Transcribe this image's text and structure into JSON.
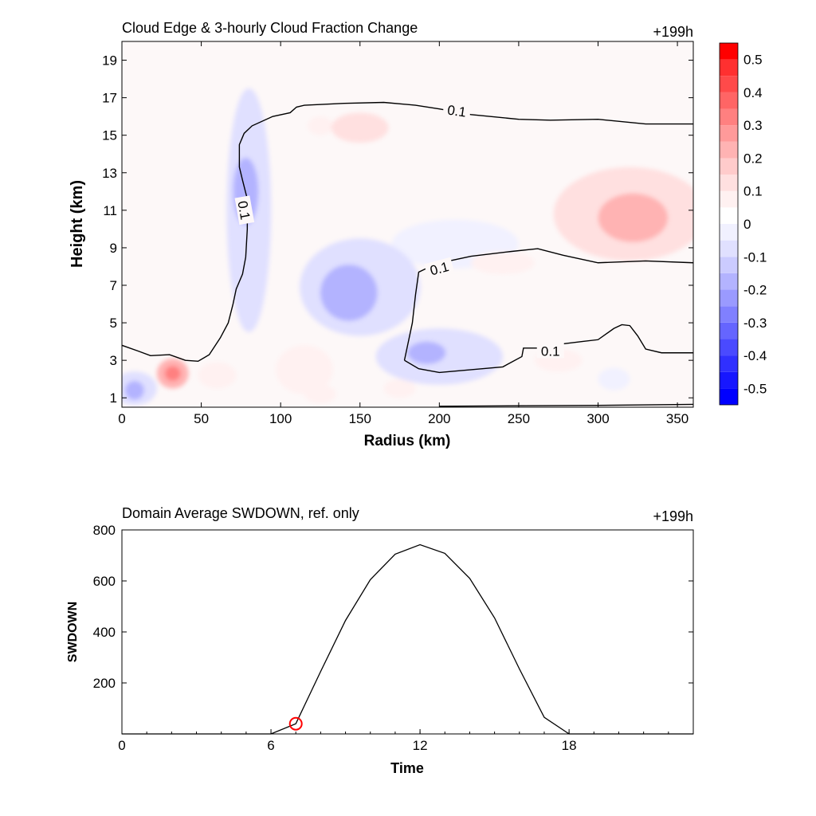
{
  "chart_data": [
    {
      "type": "heatmap",
      "title": "Cloud Edge & 3-hourly Cloud Fraction Change",
      "time_label": "+199h",
      "xlabel": "Radius (km)",
      "ylabel": "Height (km)",
      "xlim": [
        0,
        360
      ],
      "ylim": [
        0.5,
        20
      ],
      "xticks": [
        0,
        50,
        100,
        150,
        200,
        250,
        300,
        350
      ],
      "yticks": [
        1,
        3,
        5,
        7,
        9,
        11,
        13,
        15,
        17,
        19
      ],
      "colorbar": {
        "levels": [
          -0.55,
          -0.5,
          -0.45,
          -0.4,
          -0.35,
          -0.3,
          -0.25,
          -0.2,
          -0.15,
          -0.1,
          -0.05,
          0,
          0.05,
          0.1,
          0.15,
          0.2,
          0.25,
          0.3,
          0.35,
          0.4,
          0.45,
          0.5,
          0.55
        ],
        "colors": [
          "#0000ff",
          "#1717ff",
          "#3030ff",
          "#4a4aff",
          "#6565ff",
          "#8080ff",
          "#9a9aff",
          "#b3b3ff",
          "#cbcbff",
          "#e0e0ff",
          "#f1f1ff",
          "#ffffff",
          "#fff1f1",
          "#ffe0e0",
          "#ffcbcb",
          "#ffb3b3",
          "#ff9a9a",
          "#ff8080",
          "#ff6565",
          "#ff4a4a",
          "#ff3030",
          "#ff0000"
        ],
        "tick_labels": [
          "-0.5",
          "-0.4",
          "-0.3",
          "-0.2",
          "-0.1",
          "0",
          "0.1",
          "0.2",
          "0.3",
          "0.4",
          "0.5"
        ],
        "tick_values": [
          -0.5,
          -0.4,
          -0.3,
          -0.2,
          -0.1,
          0,
          0.1,
          0.2,
          0.3,
          0.4,
          0.5
        ]
      },
      "blobs": [
        {
          "x": 150,
          "y": 6.9,
          "rx": 38,
          "ry": 2.6,
          "v": -0.1
        },
        {
          "x": 143,
          "y": 6.6,
          "rx": 18,
          "ry": 1.5,
          "v": -0.2
        },
        {
          "x": 200,
          "y": 3.2,
          "rx": 40,
          "ry": 1.5,
          "v": -0.1
        },
        {
          "x": 192,
          "y": 3.4,
          "rx": 12,
          "ry": 0.6,
          "v": -0.2
        },
        {
          "x": 80,
          "y": 11,
          "rx": 14,
          "ry": 6.5,
          "v": -0.1
        },
        {
          "x": 78,
          "y": 12,
          "rx": 8,
          "ry": 1.8,
          "v": -0.2
        },
        {
          "x": 210,
          "y": 9.2,
          "rx": 40,
          "ry": 1.3,
          "v": -0.05
        },
        {
          "x": 8,
          "y": 1.5,
          "rx": 14,
          "ry": 0.9,
          "v": -0.1
        },
        {
          "x": 8,
          "y": 1.4,
          "rx": 6,
          "ry": 0.5,
          "v": -0.2
        },
        {
          "x": 310,
          "y": 2.0,
          "rx": 10,
          "ry": 0.6,
          "v": -0.05
        },
        {
          "x": 178,
          "y": 3.3,
          "rx": 4,
          "ry": 0.3,
          "v": -0.1
        },
        {
          "x": 320,
          "y": 10.8,
          "rx": 48,
          "ry": 2.5,
          "v": 0.1
        },
        {
          "x": 322,
          "y": 10.6,
          "rx": 22,
          "ry": 1.3,
          "v": 0.2
        },
        {
          "x": 150,
          "y": 15.4,
          "rx": 18,
          "ry": 0.8,
          "v": 0.1
        },
        {
          "x": 125,
          "y": 15.5,
          "rx": 8,
          "ry": 0.5,
          "v": 0.05
        },
        {
          "x": 32,
          "y": 2.3,
          "rx": 10,
          "ry": 0.8,
          "v": 0.2
        },
        {
          "x": 32,
          "y": 2.3,
          "rx": 5,
          "ry": 0.4,
          "v": 0.3
        },
        {
          "x": 115,
          "y": 2.5,
          "rx": 18,
          "ry": 1.3,
          "v": 0.05
        },
        {
          "x": 60,
          "y": 2.2,
          "rx": 12,
          "ry": 0.7,
          "v": 0.05
        },
        {
          "x": 125,
          "y": 1.2,
          "rx": 10,
          "ry": 0.5,
          "v": 0.05
        },
        {
          "x": 175,
          "y": 1.5,
          "rx": 10,
          "ry": 0.5,
          "v": 0.05
        },
        {
          "x": 240,
          "y": 8.2,
          "rx": 20,
          "ry": 0.6,
          "v": 0.05
        },
        {
          "x": 275,
          "y": 3.0,
          "rx": 15,
          "ry": 0.6,
          "v": 0.05
        }
      ],
      "contours": [
        {
          "label": "0.1",
          "points": [
            [
              0,
              3.8
            ],
            [
              10,
              3.5
            ],
            [
              18,
              3.25
            ],
            [
              30,
              3.3
            ],
            [
              40,
              3.0
            ],
            [
              48,
              2.95
            ],
            [
              55,
              3.3
            ],
            [
              62,
              4.2
            ],
            [
              67,
              5.0
            ],
            [
              70,
              6.0
            ],
            [
              72,
              6.8
            ],
            [
              76,
              7.6
            ],
            [
              78,
              8.5
            ],
            [
              79,
              10.0
            ],
            [
              79,
              11.6
            ],
            [
              76,
              12.6
            ],
            [
              74,
              13.3
            ],
            [
              74,
              14.5
            ],
            [
              77,
              15.1
            ],
            [
              82,
              15.5
            ],
            [
              95,
              16.0
            ],
            [
              106,
              16.2
            ],
            [
              110,
              16.5
            ],
            [
              115,
              16.6
            ],
            [
              140,
              16.7
            ],
            [
              165,
              16.75
            ],
            [
              185,
              16.6
            ],
            [
              200,
              16.4
            ],
            [
              220,
              16.1
            ],
            [
              250,
              15.85
            ],
            [
              270,
              15.8
            ],
            [
              300,
              15.85
            ],
            [
              330,
              15.6
            ],
            [
              360,
              15.6
            ]
          ]
        },
        {
          "label": "0.1",
          "points": [
            [
              178,
              3.0
            ],
            [
              183,
              5.0
            ],
            [
              185,
              6.5
            ],
            [
              187,
              7.7
            ],
            [
              198,
              8.15
            ],
            [
              220,
              8.55
            ],
            [
              245,
              8.8
            ],
            [
              262,
              8.95
            ],
            [
              278,
              8.6
            ],
            [
              300,
              8.2
            ],
            [
              330,
              8.3
            ],
            [
              360,
              8.2
            ]
          ]
        },
        {
          "label": "0.1",
          "points": [
            [
              178,
              3.0
            ],
            [
              187,
              2.55
            ],
            [
              200,
              2.35
            ],
            [
              220,
              2.5
            ],
            [
              240,
              2.65
            ],
            [
              252,
              3.2
            ],
            [
              253,
              3.65
            ],
            [
              262,
              3.65
            ],
            [
              275,
              3.85
            ],
            [
              290,
              4.0
            ],
            [
              300,
              4.1
            ],
            [
              310,
              4.7
            ],
            [
              315,
              4.9
            ],
            [
              320,
              4.85
            ],
            [
              325,
              4.3
            ],
            [
              330,
              3.6
            ],
            [
              340,
              3.4
            ],
            [
              360,
              3.4
            ]
          ]
        },
        {
          "label": "",
          "points": [
            [
              200,
              0.55
            ],
            [
              300,
              0.6
            ],
            [
              360,
              0.65
            ]
          ]
        }
      ],
      "contour_labels": [
        {
          "text": "0.1",
          "x": 211,
          "y": 16.3,
          "angle": 8
        },
        {
          "text": "0.1",
          "x": 77,
          "y": 11.0,
          "angle": 80
        },
        {
          "text": "0.1",
          "x": 200,
          "y": 7.9,
          "angle": -15
        },
        {
          "text": "0.1",
          "x": 270,
          "y": 3.5,
          "angle": 0
        }
      ]
    },
    {
      "type": "line",
      "title": "Domain Average SWDOWN, ref. only",
      "time_label": "+199h",
      "xlabel": "Time",
      "ylabel": "SWDOWN",
      "xlim": [
        0,
        23
      ],
      "ylim": [
        0,
        800
      ],
      "xticks": [
        0,
        6,
        12,
        18
      ],
      "yticks": [
        200,
        400,
        600,
        800
      ],
      "x": [
        0,
        1,
        2,
        3,
        4,
        5,
        6,
        7,
        8,
        9,
        10,
        11,
        12,
        13,
        14,
        15,
        16,
        17,
        18,
        19,
        20,
        21,
        22,
        23
      ],
      "y": [
        0,
        0,
        0,
        0,
        0,
        0,
        0,
        40,
        245,
        445,
        605,
        705,
        742,
        708,
        610,
        455,
        255,
        65,
        0,
        0,
        0,
        0,
        0,
        0
      ],
      "marker": {
        "x": 7,
        "y": 40,
        "color": "#ff0000"
      }
    }
  ]
}
